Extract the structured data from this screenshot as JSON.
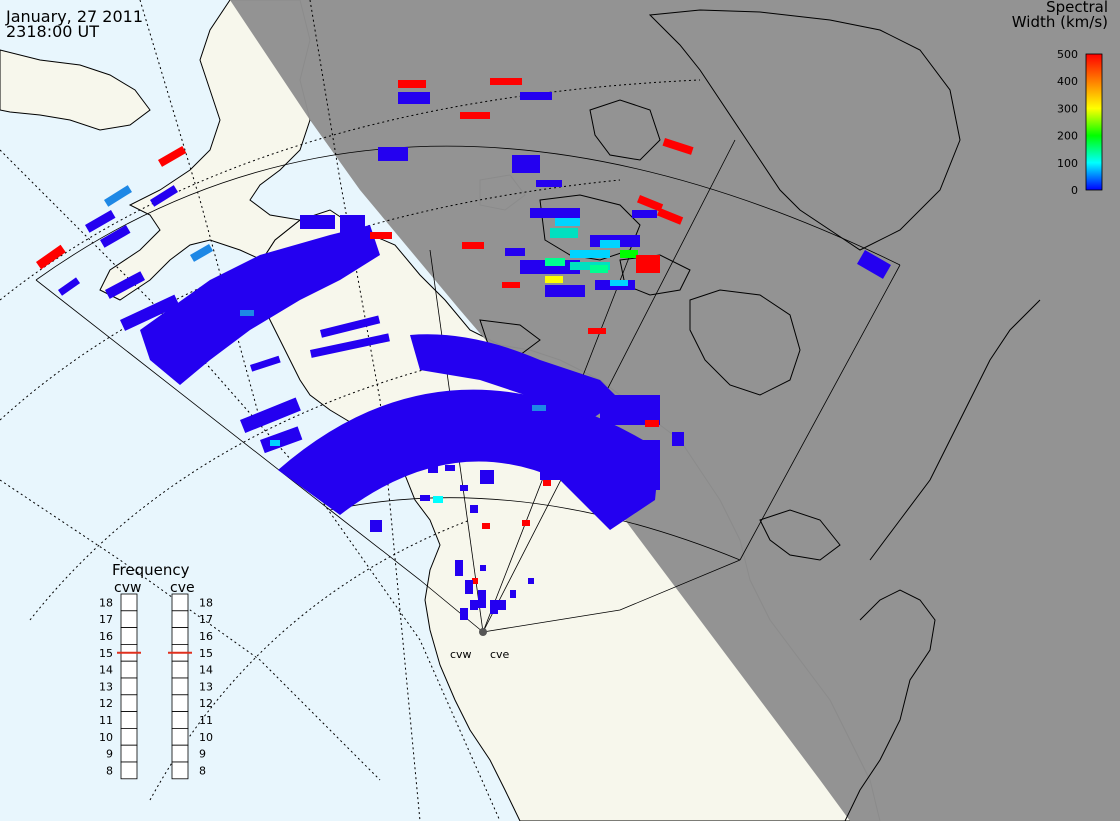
{
  "header": {
    "date": "January, 27 2011",
    "time": "2318:00 UT"
  },
  "colorbar": {
    "title_line1": "Spectral",
    "title_line2": "Width (km/s)",
    "ticks": [
      "500",
      "400",
      "300",
      "200",
      "100",
      "0"
    ],
    "colors": [
      "#ff0000",
      "#ff7f00",
      "#ffff00",
      "#00ff00",
      "#00ffff",
      "#0000ff"
    ]
  },
  "colors": {
    "ocean": "#e8f6fd",
    "land": "#f7f7ec",
    "night": "#909090",
    "echo_low": "#2400f0",
    "echo_high": "#ff0000"
  },
  "radars": [
    {
      "code": "cvw"
    },
    {
      "code": "cve"
    }
  ],
  "frequency": {
    "title": "Frequency",
    "left_label": "cvw",
    "right_label": "cve",
    "ticks": [
      "18",
      "17",
      "16",
      "15",
      "14",
      "13",
      "12",
      "11",
      "10",
      "9",
      "8"
    ],
    "cvw_mhz": 15,
    "cve_mhz": 15
  }
}
